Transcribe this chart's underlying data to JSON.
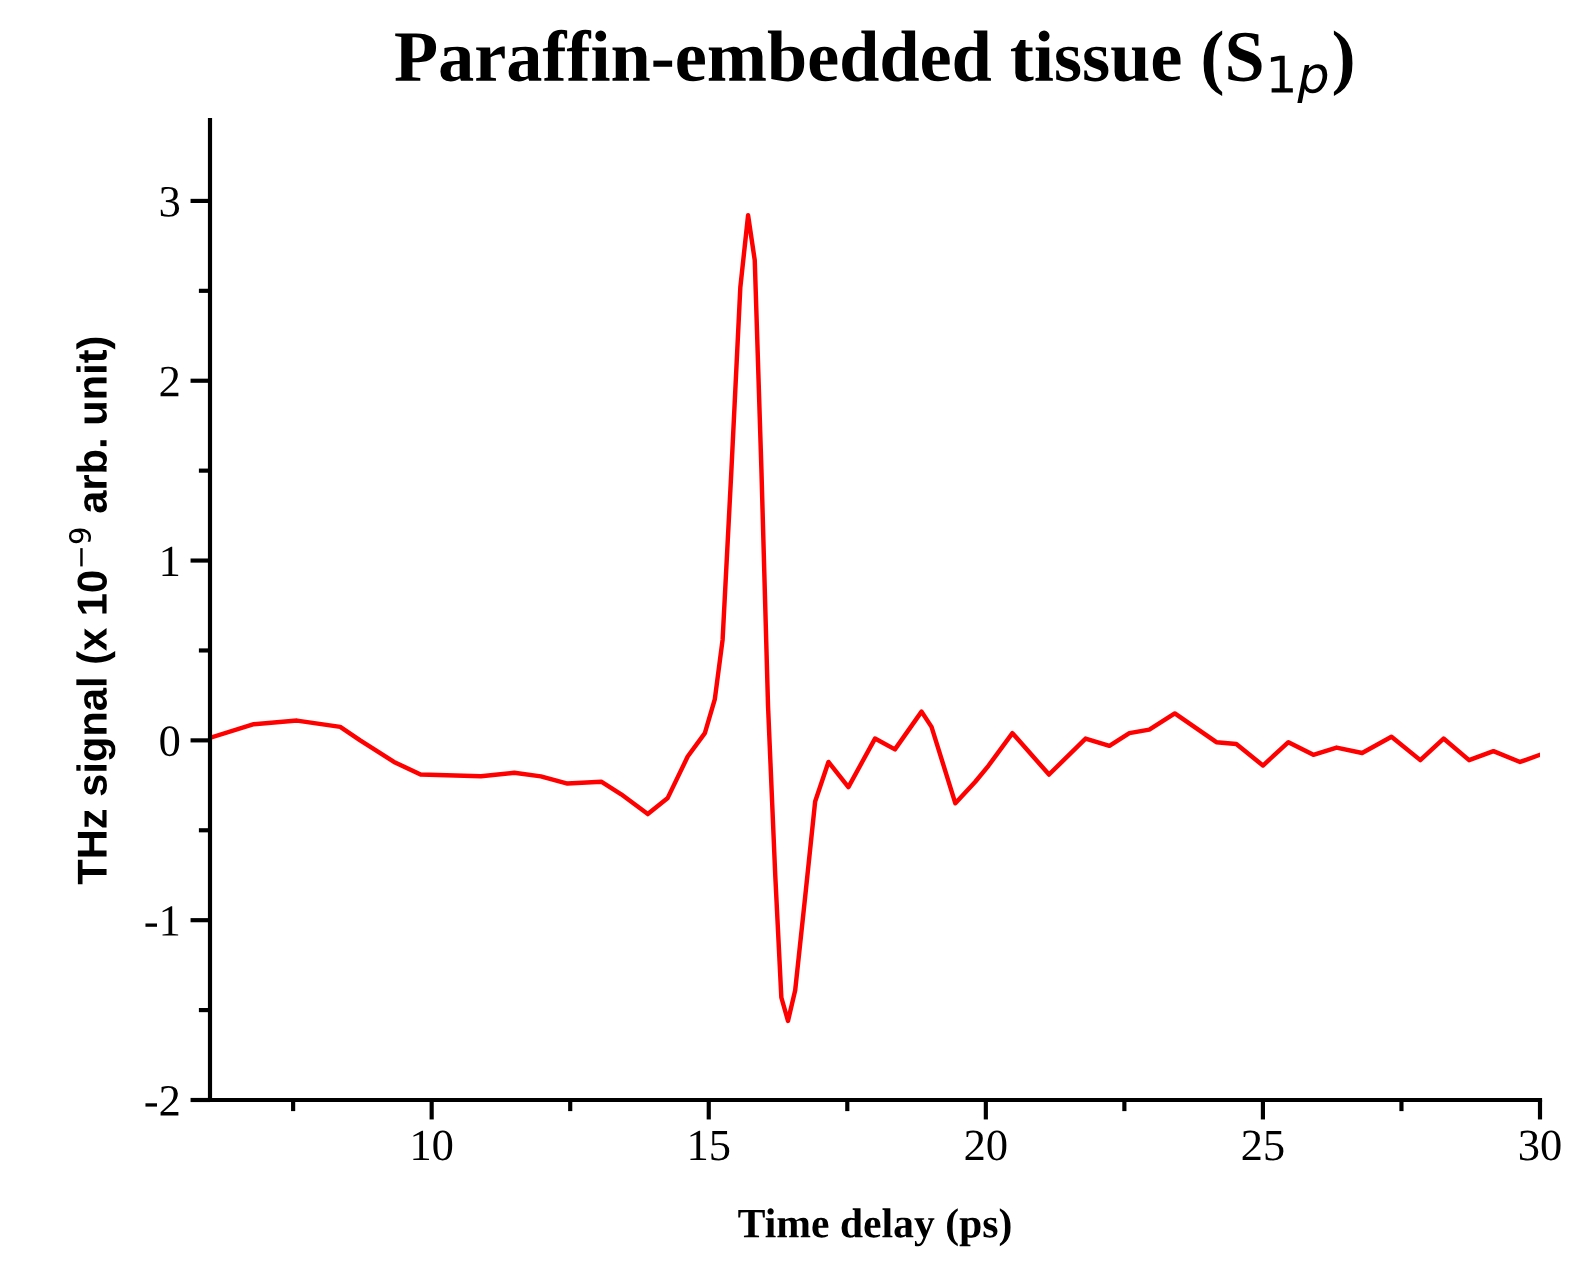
{
  "chart_data": {
    "type": "line",
    "title": "Paraffin-embedded tissue (S$_{1p}$)",
    "xlabel": "Time delay (ps)",
    "ylabel": "THz signal (x 10$^{−9}$ arb. unit)",
    "xlim": [
      6,
      30
    ],
    "ylim": [
      -2,
      3.45
    ],
    "xticks": [
      {
        "value": 7.5,
        "label": null
      },
      10,
      {
        "value": 12.5,
        "label": null
      },
      15,
      {
        "value": 17.5,
        "label": null
      },
      20,
      {
        "value": 22.5,
        "label": null
      },
      25,
      {
        "value": 27.5,
        "label": null
      },
      30
    ],
    "yticks": [
      -2,
      {
        "value": -1.5,
        "label": null
      },
      -1,
      {
        "value": -0.5,
        "label": null
      },
      0,
      {
        "value": 0.5,
        "label": null
      },
      1,
      {
        "value": 1.5,
        "label": null
      },
      2,
      {
        "value": 2.5,
        "label": null
      },
      3
    ],
    "grid": false,
    "marker": "none",
    "line_style": "solid",
    "series": [
      {
        "color": "#ff0000",
        "x": [
          6.06,
          6.79,
          7.57,
          8.35,
          8.71,
          9.32,
          9.8,
          10.89,
          11.49,
          11.97,
          12.45,
          13.06,
          13.42,
          13.9,
          14.26,
          14.62,
          14.93,
          15.11,
          15.25,
          15.41,
          15.57,
          15.71,
          15.83,
          15.95,
          16.07,
          16.2,
          16.31,
          16.43,
          16.56,
          16.74,
          16.92,
          17.16,
          17.52,
          18.0,
          18.36,
          18.84,
          19.02,
          19.45,
          19.81,
          20.05,
          20.48,
          21.14,
          21.8,
          22.23,
          22.59,
          22.95,
          23.41,
          24.16,
          24.52,
          25.0,
          25.46,
          25.91,
          26.33,
          26.79,
          27.32,
          27.84,
          28.26,
          28.72,
          29.16,
          29.64,
          30.0
        ],
        "values": [
          0.02,
          0.09,
          0.11,
          0.075,
          0.0,
          -0.12,
          -0.19,
          -0.2,
          -0.18,
          -0.2,
          -0.24,
          -0.23,
          -0.3,
          -0.41,
          -0.32,
          -0.09,
          0.04,
          0.23,
          0.56,
          1.51,
          2.52,
          2.92,
          2.67,
          1.51,
          0.19,
          -0.75,
          -1.43,
          -1.56,
          -1.39,
          -0.87,
          -0.34,
          -0.12,
          -0.26,
          0.01,
          -0.05,
          0.16,
          0.075,
          -0.35,
          -0.23,
          -0.14,
          0.04,
          -0.19,
          0.01,
          -0.03,
          0.04,
          0.06,
          0.15,
          -0.01,
          -0.02,
          -0.14,
          -0.01,
          -0.08,
          -0.04,
          -0.07,
          0.02,
          -0.11,
          0.01,
          -0.11,
          -0.06,
          -0.12,
          -0.08
        ]
      }
    ]
  }
}
